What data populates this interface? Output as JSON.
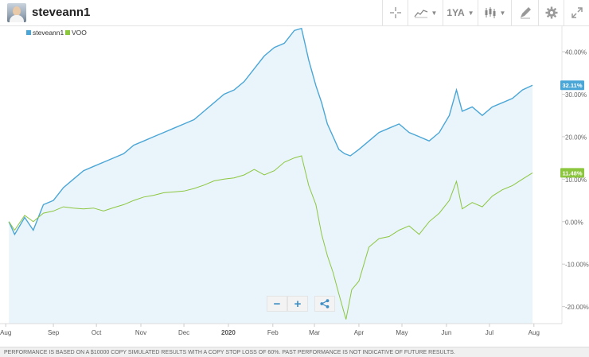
{
  "header": {
    "username": "steveann1",
    "toolbar": {
      "period_label": "1YA"
    }
  },
  "footer": {
    "disclaimer": "PERFORMANCE IS BASED ON A $10000 COPY SIMULATED RESULTS WITH A COPY STOP LOSS OF 60%. PAST PERFORMANCE IS NOT INDICATIVE OF FUTURE RESULTS."
  },
  "colors": {
    "steveann1": "#4aa6d6",
    "voo": "#8cc63f",
    "area_fill": "#eaf5fb"
  },
  "icons": [
    "crosshair-icon",
    "chart-type-icon",
    "candlestick-icon",
    "drawing-tool-icon",
    "gear-icon",
    "expand-icon",
    "share-icon"
  ],
  "chart_data": {
    "type": "line",
    "legend": [
      "steveann1",
      "VOO"
    ],
    "legend_position": "top-left",
    "x_ticks": [
      "Aug",
      "Sep",
      "Oct",
      "Nov",
      "Dec",
      "2020",
      "Feb",
      "Mar",
      "Apr",
      "May",
      "Jun",
      "Jul",
      "Aug"
    ],
    "y_ticks": [
      "40.00%",
      "30.00%",
      "20.00%",
      "10.00%",
      "0.00%",
      "-10.00%",
      "-20.00%"
    ],
    "ylim": [
      -24,
      46
    ],
    "last_value_labels": {
      "steveann1": "32.11%",
      "voo": "11.48%"
    },
    "series": [
      {
        "name": "steveann1",
        "area": true,
        "points": [
          [
            "2019-08-01",
            0
          ],
          [
            "2019-08-05",
            -3
          ],
          [
            "2019-08-12",
            1
          ],
          [
            "2019-08-18",
            -2
          ],
          [
            "2019-08-25",
            4
          ],
          [
            "2019-09-01",
            5
          ],
          [
            "2019-09-08",
            8
          ],
          [
            "2019-09-15",
            10
          ],
          [
            "2019-09-22",
            12
          ],
          [
            "2019-09-29",
            13
          ],
          [
            "2019-10-06",
            14
          ],
          [
            "2019-10-13",
            15
          ],
          [
            "2019-10-20",
            16
          ],
          [
            "2019-10-27",
            18
          ],
          [
            "2019-11-03",
            19
          ],
          [
            "2019-11-10",
            20
          ],
          [
            "2019-11-17",
            21
          ],
          [
            "2019-11-24",
            22
          ],
          [
            "2019-12-01",
            23
          ],
          [
            "2019-12-08",
            24
          ],
          [
            "2019-12-15",
            26
          ],
          [
            "2019-12-22",
            28
          ],
          [
            "2019-12-29",
            30
          ],
          [
            "2020-01-05",
            31
          ],
          [
            "2020-01-12",
            33
          ],
          [
            "2020-01-19",
            36
          ],
          [
            "2020-01-26",
            39
          ],
          [
            "2020-02-02",
            41
          ],
          [
            "2020-02-09",
            42
          ],
          [
            "2020-02-16",
            45
          ],
          [
            "2020-02-21",
            45.5
          ],
          [
            "2020-02-26",
            38
          ],
          [
            "2020-03-02",
            32
          ],
          [
            "2020-03-06",
            28
          ],
          [
            "2020-03-10",
            23
          ],
          [
            "2020-03-14",
            20
          ],
          [
            "2020-03-18",
            17
          ],
          [
            "2020-03-22",
            16
          ],
          [
            "2020-03-26",
            15.5
          ],
          [
            "2020-04-01",
            17
          ],
          [
            "2020-04-08",
            19
          ],
          [
            "2020-04-15",
            21
          ],
          [
            "2020-04-22",
            22
          ],
          [
            "2020-04-29",
            23
          ],
          [
            "2020-05-06",
            21
          ],
          [
            "2020-05-13",
            20
          ],
          [
            "2020-05-20",
            19
          ],
          [
            "2020-05-27",
            21
          ],
          [
            "2020-06-03",
            25
          ],
          [
            "2020-06-08",
            31
          ],
          [
            "2020-06-12",
            26
          ],
          [
            "2020-06-19",
            27
          ],
          [
            "2020-06-26",
            25
          ],
          [
            "2020-07-03",
            27
          ],
          [
            "2020-07-10",
            28
          ],
          [
            "2020-07-17",
            29
          ],
          [
            "2020-07-24",
            31
          ],
          [
            "2020-07-31",
            32.11
          ]
        ]
      },
      {
        "name": "VOO",
        "area": false,
        "points": [
          [
            "2019-08-01",
            0
          ],
          [
            "2019-08-05",
            -2
          ],
          [
            "2019-08-12",
            1.5
          ],
          [
            "2019-08-18",
            0
          ],
          [
            "2019-08-25",
            2
          ],
          [
            "2019-09-01",
            2.5
          ],
          [
            "2019-09-08",
            3.5
          ],
          [
            "2019-09-15",
            3.2
          ],
          [
            "2019-09-22",
            3.0
          ],
          [
            "2019-09-29",
            3.2
          ],
          [
            "2019-10-06",
            2.5
          ],
          [
            "2019-10-13",
            3.3
          ],
          [
            "2019-10-20",
            4.0
          ],
          [
            "2019-10-27",
            5.0
          ],
          [
            "2019-11-03",
            5.8
          ],
          [
            "2019-11-10",
            6.2
          ],
          [
            "2019-11-17",
            6.8
          ],
          [
            "2019-11-24",
            7.0
          ],
          [
            "2019-12-01",
            7.2
          ],
          [
            "2019-12-08",
            7.8
          ],
          [
            "2019-12-15",
            8.6
          ],
          [
            "2019-12-22",
            9.6
          ],
          [
            "2019-12-29",
            10.0
          ],
          [
            "2020-01-05",
            10.3
          ],
          [
            "2020-01-12",
            11.0
          ],
          [
            "2020-01-19",
            12.3
          ],
          [
            "2020-01-26",
            11.0
          ],
          [
            "2020-02-02",
            12.0
          ],
          [
            "2020-02-09",
            14.0
          ],
          [
            "2020-02-16",
            15.0
          ],
          [
            "2020-02-21",
            15.5
          ],
          [
            "2020-02-26",
            8.5
          ],
          [
            "2020-03-02",
            4.0
          ],
          [
            "2020-03-06",
            -3.0
          ],
          [
            "2020-03-10",
            -8.0
          ],
          [
            "2020-03-14",
            -12.0
          ],
          [
            "2020-03-18",
            -17.0
          ],
          [
            "2020-03-23",
            -23.0
          ],
          [
            "2020-03-27",
            -16.0
          ],
          [
            "2020-04-01",
            -14.0
          ],
          [
            "2020-04-08",
            -6.0
          ],
          [
            "2020-04-15",
            -4.0
          ],
          [
            "2020-04-22",
            -3.5
          ],
          [
            "2020-04-29",
            -2.0
          ],
          [
            "2020-05-06",
            -1.0
          ],
          [
            "2020-05-13",
            -3.0
          ],
          [
            "2020-05-20",
            0.0
          ],
          [
            "2020-05-27",
            2.0
          ],
          [
            "2020-06-03",
            5.0
          ],
          [
            "2020-06-08",
            9.5
          ],
          [
            "2020-06-12",
            3.0
          ],
          [
            "2020-06-19",
            4.5
          ],
          [
            "2020-06-26",
            3.5
          ],
          [
            "2020-07-03",
            6.0
          ],
          [
            "2020-07-10",
            7.5
          ],
          [
            "2020-07-17",
            8.5
          ],
          [
            "2020-07-24",
            10.0
          ],
          [
            "2020-07-31",
            11.48
          ]
        ]
      }
    ]
  }
}
